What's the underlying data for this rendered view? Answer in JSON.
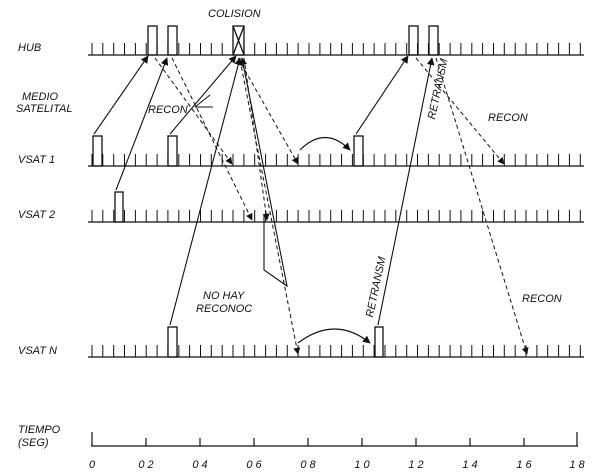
{
  "rows": {
    "hub": "HUB",
    "medio": [
      "MEDIO",
      "SATELITAL"
    ],
    "vsat1": "VSAT 1",
    "vsat2": "VSAT 2",
    "vsatn": "VSAT N",
    "tiempo": [
      "TIEMPO",
      "(SEG)"
    ]
  },
  "annotations": {
    "colision": "COLISION",
    "recon_left": "RECON",
    "recon_right_top": "RECON",
    "recon_right_bottom": "RECON",
    "no_hay": [
      "NO HAY",
      "RECONOC"
    ],
    "retransm_top": "RETRANSM",
    "retransm_bottom": "RETRANSM"
  },
  "time_axis": [
    "0",
    "0 2",
    "0 4",
    "0 6",
    "0 8",
    "1 0",
    "1 2",
    "1 4",
    "1 6",
    "1 8"
  ]
}
